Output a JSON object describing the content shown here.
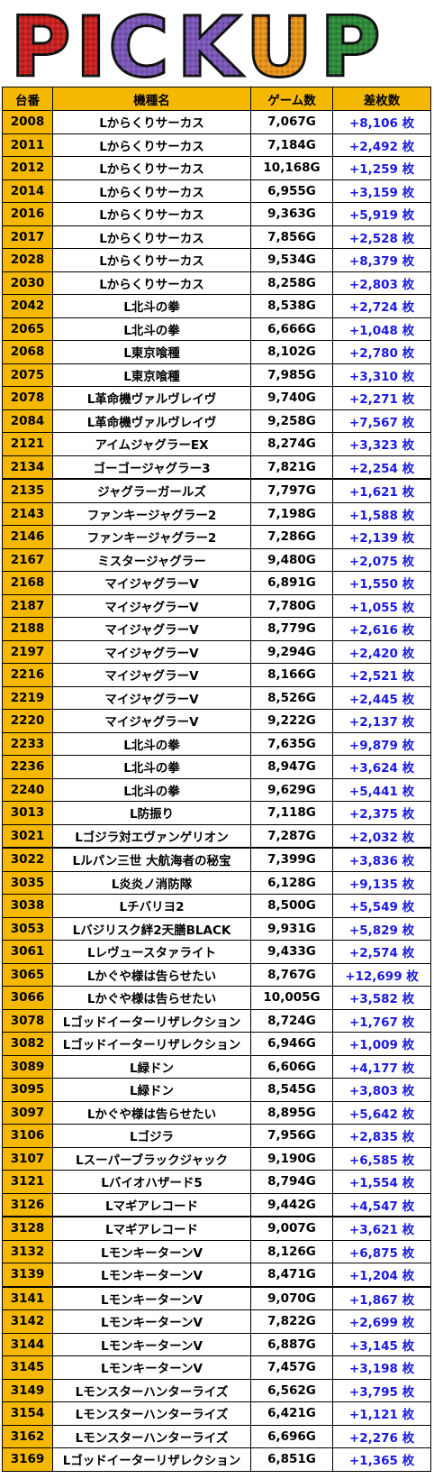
{
  "banner": {
    "text": "PICKUP",
    "letters": [
      {
        "char": "P",
        "color": "#c8201e"
      },
      {
        "char": "I",
        "color": "#c8201e"
      },
      {
        "char": "C",
        "color": "#7a56b8"
      },
      {
        "char": "K",
        "color": "#7a56b8"
      },
      {
        "char": "U",
        "color": "#e8921a"
      },
      {
        "char": "P",
        "color": "#2e8a3a"
      }
    ]
  },
  "table": {
    "headers": [
      "台番",
      "機種名",
      "ゲーム数",
      "差枚数"
    ],
    "rows": [
      [
        "2008",
        "Lからくりサーカス",
        "7,067G",
        "+8,106 枚"
      ],
      [
        "2011",
        "Lからくりサーカス",
        "7,184G",
        "+2,492 枚"
      ],
      [
        "2012",
        "Lからくりサーカス",
        "10,168G",
        "+1,259 枚"
      ],
      [
        "2014",
        "Lからくりサーカス",
        "6,955G",
        "+3,159 枚"
      ],
      [
        "2016",
        "Lからくりサーカス",
        "9,363G",
        "+5,919 枚"
      ],
      [
        "2017",
        "Lからくりサーカス",
        "7,856G",
        "+2,528 枚"
      ],
      [
        "2028",
        "Lからくりサーカス",
        "9,534G",
        "+8,379 枚"
      ],
      [
        "2030",
        "Lからくりサーカス",
        "8,258G",
        "+2,803 枚"
      ],
      [
        "2042",
        "L北斗の拳",
        "8,538G",
        "+2,724 枚"
      ],
      [
        "2065",
        "L北斗の拳",
        "6,666G",
        "+1,048 枚"
      ],
      [
        "2068",
        "L東京喰種",
        "8,102G",
        "+2,780 枚"
      ],
      [
        "2075",
        "L東京喰種",
        "7,985G",
        "+3,310 枚"
      ],
      [
        "2078",
        "L革命機ヴァルヴレイヴ",
        "9,740G",
        "+2,271 枚"
      ],
      [
        "2084",
        "L革命機ヴァルヴレイヴ",
        "9,258G",
        "+7,567 枚"
      ],
      [
        "2121",
        "アイムジャグラーEX",
        "8,274G",
        "+3,323 枚"
      ],
      [
        "2134",
        "ゴーゴージャグラー3",
        "7,821G",
        "+2,254 枚"
      ],
      [
        "2135",
        "ジャグラーガールズ",
        "7,797G",
        "+1,621 枚"
      ],
      [
        "2143",
        "ファンキージャグラー2",
        "7,198G",
        "+1,588 枚"
      ],
      [
        "2146",
        "ファンキージャグラー2",
        "7,286G",
        "+2,139 枚"
      ],
      [
        "2167",
        "ミスタージャグラー",
        "9,480G",
        "+2,075 枚"
      ],
      [
        "2168",
        "マイジャグラーV",
        "6,891G",
        "+1,550 枚"
      ],
      [
        "2187",
        "マイジャグラーV",
        "7,780G",
        "+1,055 枚"
      ],
      [
        "2188",
        "マイジャグラーV",
        "8,779G",
        "+2,616 枚"
      ],
      [
        "2197",
        "マイジャグラーV",
        "9,294G",
        "+2,420 枚"
      ],
      [
        "2216",
        "マイジャグラーV",
        "8,166G",
        "+2,521 枚"
      ],
      [
        "2219",
        "マイジャグラーV",
        "8,526G",
        "+2,445 枚"
      ],
      [
        "2220",
        "マイジャグラーV",
        "9,222G",
        "+2,137 枚"
      ],
      [
        "2233",
        "L北斗の拳",
        "7,635G",
        "+9,879 枚"
      ],
      [
        "2236",
        "L北斗の拳",
        "8,947G",
        "+3,624 枚"
      ],
      [
        "2240",
        "L北斗の拳",
        "9,629G",
        "+5,441 枚"
      ],
      [
        "3013",
        "L防振り",
        "7,118G",
        "+2,375 枚"
      ],
      [
        "3021",
        "Lゴジラ対エヴァンゲリオン",
        "7,287G",
        "+2,032 枚"
      ],
      [
        "3022",
        "Lルパン三世 大航海者の秘宝",
        "7,399G",
        "+3,836 枚"
      ],
      [
        "3035",
        "L炎炎ノ消防隊",
        "6,128G",
        "+9,135 枚"
      ],
      [
        "3038",
        "Lチバリヨ2",
        "8,500G",
        "+5,549 枚"
      ],
      [
        "3053",
        "Lバジリスク絆2天膳BLACK",
        "9,931G",
        "+5,829 枚"
      ],
      [
        "3061",
        "Lレヴュースタァライト",
        "9,433G",
        "+2,574 枚"
      ],
      [
        "3065",
        "Lかぐや様は告らせたい",
        "8,767G",
        "+12,699 枚"
      ],
      [
        "3066",
        "Lかぐや様は告らせたい",
        "10,005G",
        "+3,582 枚"
      ],
      [
        "3078",
        "Lゴッドイーターリザレクション",
        "8,724G",
        "+1,767 枚"
      ],
      [
        "3082",
        "Lゴッドイーターリザレクション",
        "6,946G",
        "+1,009 枚"
      ],
      [
        "3089",
        "L緑ドン",
        "6,606G",
        "+4,177 枚"
      ],
      [
        "3095",
        "L緑ドン",
        "8,545G",
        "+3,803 枚"
      ],
      [
        "3097",
        "Lかぐや様は告らせたい",
        "8,895G",
        "+5,642 枚"
      ],
      [
        "3106",
        "Lゴジラ",
        "7,956G",
        "+2,835 枚"
      ],
      [
        "3107",
        "Lスーパーブラックジャック",
        "9,190G",
        "+6,585 枚"
      ],
      [
        "3121",
        "Lバイオハザード5",
        "8,794G",
        "+1,554 枚"
      ],
      [
        "3126",
        "Lマギアレコード",
        "9,442G",
        "+4,547 枚"
      ],
      [
        "3128",
        "Lマギアレコード",
        "9,007G",
        "+3,621 枚"
      ],
      [
        "3132",
        "LモンキーターンV",
        "8,126G",
        "+6,875 枚"
      ],
      [
        "3139",
        "LモンキーターンV",
        "8,471G",
        "+1,204 枚"
      ],
      [
        "3141",
        "LモンキーターンV",
        "9,070G",
        "+1,867 枚"
      ],
      [
        "3142",
        "LモンキーターンV",
        "7,822G",
        "+2,699 枚"
      ],
      [
        "3144",
        "LモンキーターンV",
        "6,887G",
        "+3,145 枚"
      ],
      [
        "3145",
        "LモンキーターンV",
        "7,457G",
        "+3,198 枚"
      ],
      [
        "3149",
        "Lモンスターハンターライズ",
        "6,562G",
        "+3,795 枚"
      ],
      [
        "3154",
        "Lモンスターハンターライズ",
        "6,421G",
        "+1,121 枚"
      ],
      [
        "3162",
        "Lモンスターハンターライズ",
        "6,696G",
        "+2,276 枚"
      ],
      [
        "3169",
        "Lゴッドイーターリザレクション",
        "6,851G",
        "+1,365 枚"
      ]
    ],
    "thick_border_before": [
      "2135",
      "3022",
      "3128",
      "3141"
    ]
  }
}
